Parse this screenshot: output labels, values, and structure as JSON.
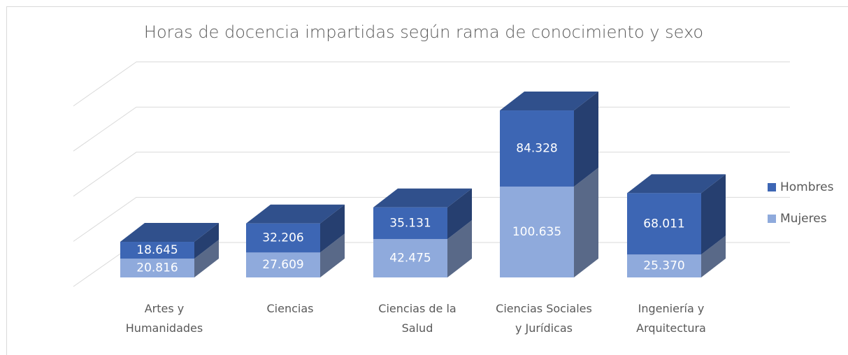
{
  "chart_data": {
    "type": "bar3d-stacked",
    "title": "Horas de docencia impartidas según rama de conocimiento y sexo",
    "categories": [
      "Artes y Humanidades",
      "Ciencias",
      "Ciencias de la Salud",
      "Ciencias Sociales y Jurídicas",
      "Ingeniería y Arquitectura"
    ],
    "series": [
      {
        "name": "Mujeres",
        "color": "#8faadc",
        "values": [
          20816,
          27609,
          42475,
          100635,
          25370
        ],
        "value_labels": [
          "20.816",
          "27.609",
          "42.475",
          "100.635",
          "25.370"
        ]
      },
      {
        "name": "Hombres",
        "color": "#3d66b4",
        "values": [
          18645,
          32206,
          35131,
          84328,
          68011
        ],
        "value_labels": [
          "18.645",
          "32.206",
          "35.131",
          "84.328",
          "68.011"
        ]
      }
    ],
    "ylim": [
      0,
      200000
    ],
    "yticks": [
      0,
      50000,
      100000,
      150000,
      200000
    ],
    "grid": true,
    "legend": "right"
  }
}
